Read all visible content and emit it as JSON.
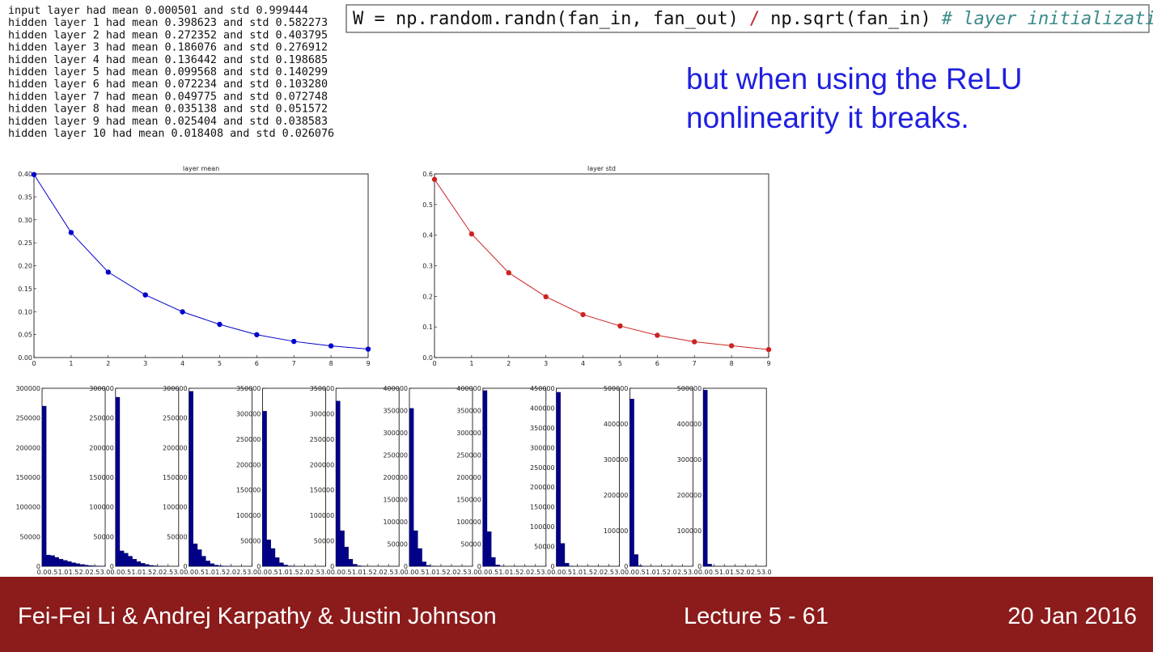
{
  "log_lines": [
    "input layer had mean 0.000501 and std 0.999444",
    "hidden layer 1 had mean 0.398623 and std 0.582273",
    "hidden layer 2 had mean 0.272352 and std 0.403795",
    "hidden layer 3 had mean 0.186076 and std 0.276912",
    "hidden layer 4 had mean 0.136442 and std 0.198685",
    "hidden layer 5 had mean 0.099568 and std 0.140299",
    "hidden layer 6 had mean 0.072234 and std 0.103280",
    "hidden layer 7 had mean 0.049775 and std 0.072748",
    "hidden layer 8 had mean 0.035138 and std 0.051572",
    "hidden layer 9 had mean 0.025404 and std 0.038583",
    "hidden layer 10 had mean 0.018408 and std 0.026076"
  ],
  "code": [
    "W = np.random.randn(fan_in, fan_out)",
    "/",
    "np.sqrt(fan_in)",
    "# layer initialization"
  ],
  "caption": [
    "but when using the ReLU",
    "nonlinearity it breaks."
  ],
  "footer": {
    "authors": "Fei-Fei Li & Andrej Karpathy & Justin Johnson",
    "lecture": "Lecture 5 - 61",
    "date": "20 Jan 2016"
  },
  "chart_data": [
    {
      "type": "line",
      "title": "layer mean",
      "color": "#0000cc",
      "x": [
        0,
        1,
        2,
        3,
        4,
        5,
        6,
        7,
        8,
        9
      ],
      "values": [
        0.398623,
        0.272352,
        0.186076,
        0.136442,
        0.099568,
        0.072234,
        0.049775,
        0.035138,
        0.025404,
        0.018408
      ],
      "xlim": [
        0,
        9
      ],
      "xticks": [
        0,
        1,
        2,
        3,
        4,
        5,
        6,
        7,
        8,
        9
      ],
      "ylim": [
        0,
        0.4
      ],
      "yticks": [
        {
          "value": 0,
          "label": "0.00"
        },
        0.05,
        {
          "value": 0.1,
          "label": "0.10"
        },
        0.15,
        {
          "value": 0.2,
          "label": "0.20"
        },
        0.25,
        {
          "value": 0.3,
          "label": "0.30"
        },
        0.35,
        {
          "value": 0.4,
          "label": "0.40"
        }
      ]
    },
    {
      "type": "line",
      "title": "layer std",
      "color": "#cc2222",
      "x": [
        0,
        1,
        2,
        3,
        4,
        5,
        6,
        7,
        8,
        9
      ],
      "values": [
        0.582273,
        0.403795,
        0.276912,
        0.198685,
        0.140299,
        0.10328,
        0.072748,
        0.051572,
        0.038583,
        0.026076
      ],
      "xlim": [
        0,
        9
      ],
      "xticks": [
        0,
        1,
        2,
        3,
        4,
        5,
        6,
        7,
        8,
        9
      ],
      "ylim": [
        0,
        0.6
      ],
      "yticks": [
        {
          "value": 0,
          "label": "0.0"
        },
        0.1,
        0.2,
        0.3,
        0.4,
        0.5,
        0.6
      ]
    },
    {
      "type": "histogram",
      "color": "#00008b",
      "bins": [
        0,
        0.2,
        0.4,
        0.6,
        0.8,
        1,
        1.2,
        1.4,
        1.6,
        1.8,
        2,
        2.2,
        2.4,
        2.6,
        2.8,
        3
      ],
      "values": [
        270000,
        19000,
        18000,
        15000,
        12000,
        10000,
        8000,
        6000,
        4500,
        3000,
        2000,
        1200,
        700,
        300,
        100
      ],
      "xlim": [
        0,
        3
      ],
      "xticks": [
        {
          "value": 0,
          "label": "0.0"
        },
        0.5,
        {
          "value": 1,
          "label": "1.0"
        },
        1.5,
        {
          "value": 2,
          "label": "2.0"
        },
        2.5,
        {
          "value": 3,
          "label": "3.0"
        }
      ],
      "ylim": [
        0,
        300000
      ],
      "yticks": [
        0,
        50000,
        100000,
        150000,
        200000,
        250000,
        300000
      ]
    },
    {
      "type": "histogram",
      "color": "#00008b",
      "bins": [
        0,
        0.2,
        0.4,
        0.6,
        0.8,
        1,
        1.2,
        1.4,
        1.6,
        1.8,
        2,
        2.2,
        2.4,
        2.6,
        2.8,
        3
      ],
      "values": [
        285000,
        26000,
        22000,
        17000,
        12000,
        8000,
        5000,
        3000,
        1500,
        800,
        300,
        100,
        0,
        0,
        0
      ],
      "xlim": [
        0,
        3
      ],
      "xticks": [
        {
          "value": 0,
          "label": "0.0"
        },
        0.5,
        {
          "value": 1,
          "label": "1.0"
        },
        1.5,
        {
          "value": 2,
          "label": "2.0"
        },
        2.5,
        {
          "value": 3,
          "label": "3.0"
        }
      ],
      "ylim": [
        0,
        300000
      ],
      "yticks": [
        0,
        50000,
        100000,
        150000,
        200000,
        250000,
        300000
      ]
    },
    {
      "type": "histogram",
      "color": "#00008b",
      "bins": [
        0,
        0.2,
        0.4,
        0.6,
        0.8,
        1,
        1.2,
        1.4,
        1.6,
        1.8,
        2,
        2.2,
        2.4,
        2.6,
        2.8,
        3
      ],
      "values": [
        295000,
        38000,
        28000,
        17000,
        9000,
        4500,
        2000,
        800,
        300,
        100,
        0,
        0,
        0,
        0,
        0
      ],
      "xlim": [
        0,
        3
      ],
      "xticks": [
        {
          "value": 0,
          "label": "0.0"
        },
        0.5,
        {
          "value": 1,
          "label": "1.0"
        },
        1.5,
        {
          "value": 2,
          "label": "2.0"
        },
        2.5,
        {
          "value": 3,
          "label": "3.0"
        }
      ],
      "ylim": [
        0,
        300000
      ],
      "yticks": [
        0,
        50000,
        100000,
        150000,
        200000,
        250000,
        300000
      ]
    },
    {
      "type": "histogram",
      "color": "#00008b",
      "bins": [
        0,
        0.2,
        0.4,
        0.6,
        0.8,
        1,
        1.2,
        1.4,
        1.6,
        1.8,
        2,
        2.2,
        2.4,
        2.6,
        2.8,
        3
      ],
      "values": [
        305000,
        52000,
        35000,
        17000,
        7000,
        2500,
        800,
        200,
        0,
        0,
        0,
        0,
        0,
        0,
        0
      ],
      "xlim": [
        0,
        3
      ],
      "xticks": [
        {
          "value": 0,
          "label": "0.0"
        },
        0.5,
        {
          "value": 1,
          "label": "1.0"
        },
        1.5,
        {
          "value": 2,
          "label": "2.0"
        },
        2.5,
        {
          "value": 3,
          "label": "3.0"
        }
      ],
      "ylim": [
        0,
        350000
      ],
      "yticks": [
        0,
        50000,
        100000,
        150000,
        200000,
        250000,
        300000,
        350000
      ]
    },
    {
      "type": "histogram",
      "color": "#00008b",
      "bins": [
        0,
        0.2,
        0.4,
        0.6,
        0.8,
        1,
        1.2,
        1.4,
        1.6,
        1.8,
        2,
        2.2,
        2.4,
        2.6,
        2.8,
        3
      ],
      "values": [
        325000,
        70000,
        38000,
        14000,
        4000,
        1000,
        200,
        0,
        0,
        0,
        0,
        0,
        0,
        0,
        0
      ],
      "xlim": [
        0,
        3
      ],
      "xticks": [
        {
          "value": 0,
          "label": "0.0"
        },
        0.5,
        {
          "value": 1,
          "label": "1.0"
        },
        1.5,
        {
          "value": 2,
          "label": "2.0"
        },
        2.5,
        {
          "value": 3,
          "label": "3.0"
        }
      ],
      "ylim": [
        0,
        350000
      ],
      "yticks": [
        0,
        50000,
        100000,
        150000,
        200000,
        250000,
        300000,
        350000
      ]
    },
    {
      "type": "histogram",
      "color": "#00008b",
      "bins": [
        0,
        0.2,
        0.4,
        0.6,
        0.8,
        1,
        1.2,
        1.4,
        1.6,
        1.8,
        2,
        2.2,
        2.4,
        2.6,
        2.8,
        3
      ],
      "values": [
        355000,
        80000,
        40000,
        10000,
        2000,
        300,
        0,
        0,
        0,
        0,
        0,
        0,
        0,
        0,
        0
      ],
      "xlim": [
        0,
        3
      ],
      "xticks": [
        {
          "value": 0,
          "label": "0.0"
        },
        0.5,
        {
          "value": 1,
          "label": "1.0"
        },
        1.5,
        {
          "value": 2,
          "label": "2.0"
        },
        2.5,
        {
          "value": 3,
          "label": "3.0"
        }
      ],
      "ylim": [
        0,
        400000
      ],
      "yticks": [
        0,
        50000,
        100000,
        150000,
        200000,
        250000,
        300000,
        350000,
        400000
      ]
    },
    {
      "type": "histogram",
      "color": "#00008b",
      "bins": [
        0,
        0.2,
        0.4,
        0.6,
        0.8,
        1,
        1.2,
        1.4,
        1.6,
        1.8,
        2,
        2.2,
        2.4,
        2.6,
        2.8,
        3
      ],
      "values": [
        395000,
        78000,
        20000,
        3000,
        300,
        0,
        0,
        0,
        0,
        0,
        0,
        0,
        0,
        0,
        0
      ],
      "xlim": [
        0,
        3
      ],
      "xticks": [
        {
          "value": 0,
          "label": "0.0"
        },
        0.5,
        {
          "value": 1,
          "label": "1.0"
        },
        1.5,
        {
          "value": 2,
          "label": "2.0"
        },
        2.5,
        {
          "value": 3,
          "label": "3.0"
        }
      ],
      "ylim": [
        0,
        400000
      ],
      "yticks": [
        0,
        50000,
        100000,
        150000,
        200000,
        250000,
        300000,
        350000,
        400000
      ]
    },
    {
      "type": "histogram",
      "color": "#00008b",
      "bins": [
        0,
        0.2,
        0.4,
        0.6,
        0.8,
        1,
        1.2,
        1.4,
        1.6,
        1.8,
        2,
        2.2,
        2.4,
        2.6,
        2.8,
        3
      ],
      "values": [
        440000,
        58000,
        8000,
        600,
        0,
        0,
        0,
        0,
        0,
        0,
        0,
        0,
        0,
        0,
        0
      ],
      "xlim": [
        0,
        3
      ],
      "xticks": [
        {
          "value": 0,
          "label": "0.0"
        },
        0.5,
        {
          "value": 1,
          "label": "1.0"
        },
        1.5,
        {
          "value": 2,
          "label": "2.0"
        },
        2.5,
        {
          "value": 3,
          "label": "3.0"
        }
      ],
      "ylim": [
        0,
        450000
      ],
      "yticks": [
        0,
        50000,
        100000,
        150000,
        200000,
        250000,
        300000,
        350000,
        400000,
        450000
      ]
    },
    {
      "type": "histogram",
      "color": "#00008b",
      "bins": [
        0,
        0.2,
        0.4,
        0.6,
        0.8,
        1,
        1.2,
        1.4,
        1.6,
        1.8,
        2,
        2.2,
        2.4,
        2.6,
        2.8,
        3
      ],
      "values": [
        470000,
        33000,
        2000,
        0,
        0,
        0,
        0,
        0,
        0,
        0,
        0,
        0,
        0,
        0,
        0
      ],
      "xlim": [
        0,
        3
      ],
      "xticks": [
        {
          "value": 0,
          "label": "0.0"
        },
        0.5,
        {
          "value": 1,
          "label": "1.0"
        },
        1.5,
        {
          "value": 2,
          "label": "2.0"
        },
        2.5,
        {
          "value": 3,
          "label": "3.0"
        }
      ],
      "ylim": [
        0,
        500000
      ],
      "yticks": [
        0,
        100000,
        200000,
        300000,
        400000,
        500000
      ]
    },
    {
      "type": "histogram",
      "color": "#00008b",
      "bins": [
        0,
        0.2,
        0.4,
        0.6,
        0.8,
        1,
        1.2,
        1.4,
        1.6,
        1.8,
        2,
        2.2,
        2.4,
        2.6,
        2.8,
        3
      ],
      "values": [
        495000,
        6000,
        300,
        0,
        0,
        0,
        0,
        0,
        0,
        0,
        0,
        0,
        0,
        0,
        0
      ],
      "xlim": [
        0,
        3
      ],
      "xticks": [
        {
          "value": 0,
          "label": "0.0"
        },
        0.5,
        {
          "value": 1,
          "label": "1.0"
        },
        1.5,
        {
          "value": 2,
          "label": "2.0"
        },
        2.5,
        {
          "value": 3,
          "label": "3.0"
        }
      ],
      "ylim": [
        0,
        500000
      ],
      "yticks": [
        0,
        100000,
        200000,
        300000,
        400000,
        500000
      ]
    }
  ]
}
